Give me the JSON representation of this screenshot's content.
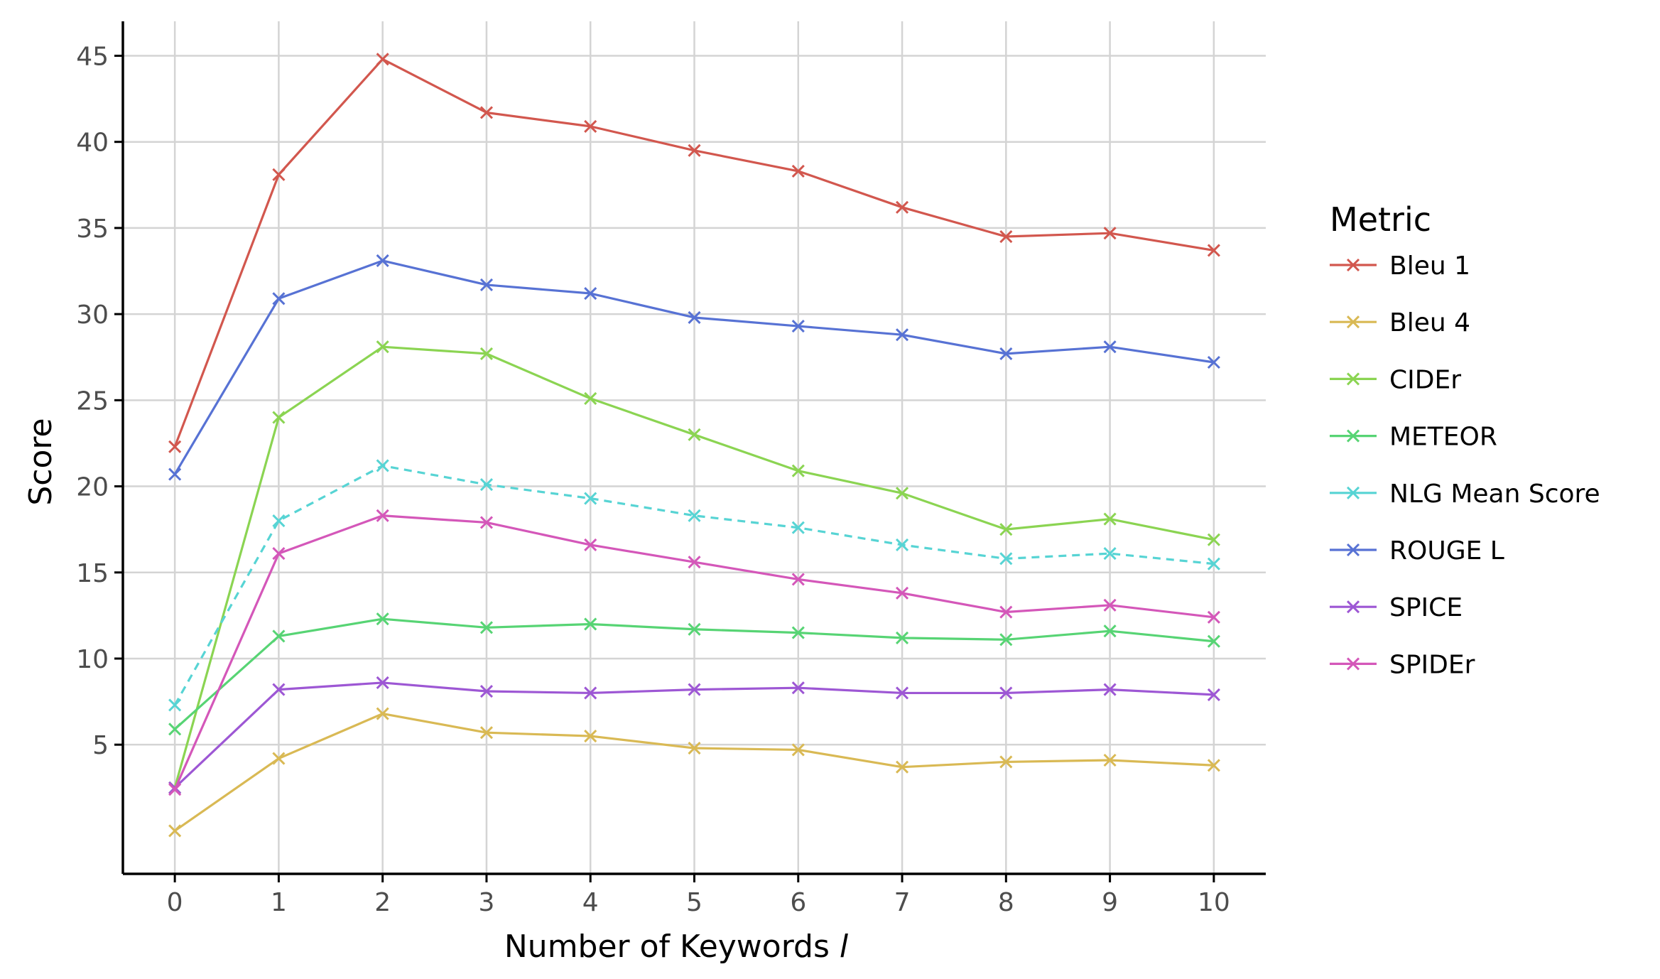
{
  "chart_data": {
    "type": "line",
    "xlabel": "Number of Keywords ",
    "xlabel_var": "l",
    "ylabel": "Score",
    "x": [
      0,
      1,
      2,
      3,
      4,
      5,
      6,
      7,
      8,
      9,
      10
    ],
    "x_ticks": [
      "0",
      "1",
      "2",
      "3",
      "4",
      "5",
      "6",
      "7",
      "8",
      "9",
      "10"
    ],
    "y_ticks": [
      5,
      10,
      15,
      20,
      25,
      30,
      35,
      40,
      45
    ],
    "xlim": [
      -0.5,
      10.5
    ],
    "ylim": [
      -2.5,
      47.0
    ],
    "grid": true,
    "marker": "x",
    "legend": {
      "title": "Metric",
      "placement": "right"
    },
    "series": [
      {
        "name": "Bleu 1",
        "color": "#d2574e",
        "dash": "solid",
        "values": [
          22.3,
          38.1,
          44.8,
          41.7,
          40.9,
          39.5,
          38.3,
          36.2,
          34.5,
          34.7,
          33.7
        ]
      },
      {
        "name": "Bleu 4",
        "color": "#d9b954",
        "dash": "solid",
        "values": [
          0.0,
          4.2,
          6.8,
          5.7,
          5.5,
          4.8,
          4.7,
          3.7,
          4.0,
          4.1,
          3.8
        ]
      },
      {
        "name": "CIDEr",
        "color": "#8bd452",
        "dash": "solid",
        "values": [
          2.5,
          24.0,
          28.1,
          27.7,
          25.1,
          23.0,
          20.9,
          19.6,
          17.5,
          18.1,
          16.9
        ]
      },
      {
        "name": "METEOR",
        "color": "#57d474",
        "dash": "solid",
        "values": [
          5.9,
          11.3,
          12.3,
          11.8,
          12.0,
          11.7,
          11.5,
          11.2,
          11.1,
          11.6,
          11.0
        ]
      },
      {
        "name": "NLG Mean Score",
        "color": "#57d4d4",
        "dash": "dashed",
        "values": [
          7.3,
          18.0,
          21.2,
          20.1,
          19.3,
          18.3,
          17.6,
          16.6,
          15.8,
          16.1,
          15.5
        ]
      },
      {
        "name": "ROUGE L",
        "color": "#5772d4",
        "dash": "solid",
        "values": [
          20.7,
          30.9,
          33.1,
          31.7,
          31.2,
          29.8,
          29.3,
          28.8,
          27.7,
          28.1,
          27.2
        ]
      },
      {
        "name": "SPICE",
        "color": "#9d57d4",
        "dash": "solid",
        "values": [
          2.5,
          8.2,
          8.6,
          8.1,
          8.0,
          8.2,
          8.3,
          8.0,
          8.0,
          8.2,
          7.9
        ]
      },
      {
        "name": "SPIDEr",
        "color": "#d457b9",
        "dash": "solid",
        "values": [
          2.4,
          16.1,
          18.3,
          17.9,
          16.6,
          15.6,
          14.6,
          13.8,
          12.7,
          13.1,
          12.4
        ]
      }
    ]
  }
}
